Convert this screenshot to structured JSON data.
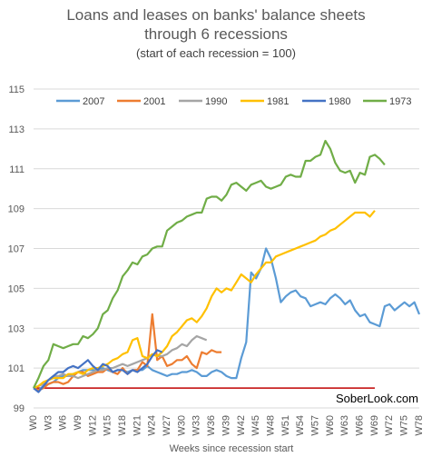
{
  "chart_data": {
    "type": "line",
    "title_line1": "Loans and leases on banks' balance sheets",
    "title_line2": "through 6 recessions",
    "subtitle": "(start of each recession = 100)",
    "xlabel": "Weeks since recession start",
    "ylabel": "",
    "watermark": "SoberLook.com",
    "ylim": [
      99,
      115
    ],
    "yticks": [
      99,
      101,
      103,
      105,
      107,
      109,
      111,
      113,
      115
    ],
    "xlim": [
      0,
      78
    ],
    "xticks": [
      "W0",
      "W3",
      "W6",
      "W9",
      "W12",
      "W15",
      "W18",
      "W21",
      "W24",
      "W27",
      "W30",
      "W33",
      "W36",
      "W39",
      "W42",
      "W45",
      "W48",
      "W51",
      "W54",
      "W57",
      "W60",
      "W63",
      "W66",
      "W69",
      "W72",
      "W75",
      "W78"
    ],
    "grid": "horizontal",
    "legend": "top",
    "baseline": {
      "value": 100,
      "color": "#c00000",
      "from": 0,
      "to": 69
    },
    "series": [
      {
        "name": "2007",
        "color": "#5b9bd5",
        "values": [
          100,
          99.9,
          100.1,
          100.2,
          100.3,
          100.5,
          100.6,
          100.6,
          100.7,
          100.8,
          100.9,
          100.9,
          100.9,
          100.9,
          101.0,
          100.9,
          100.8,
          100.9,
          100.9,
          100.8,
          100.9,
          100.9,
          100.9,
          101.1,
          100.9,
          100.8,
          100.7,
          100.6,
          100.7,
          100.7,
          100.8,
          100.8,
          100.9,
          100.8,
          100.6,
          100.6,
          100.8,
          100.9,
          100.8,
          100.6,
          100.5,
          100.5,
          101.5,
          102.3,
          105.8,
          105.5,
          106.0,
          107.0,
          106.5,
          105.5,
          104.3,
          104.6,
          104.8,
          104.9,
          104.6,
          104.5,
          104.1,
          104.2,
          104.3,
          104.2,
          104.5,
          104.7,
          104.5,
          104.2,
          104.4,
          103.9,
          103.6,
          103.7,
          103.3,
          103.2,
          103.1,
          104.1,
          104.2,
          103.9,
          104.1,
          104.3,
          104.1,
          104.3,
          103.7
        ]
      },
      {
        "name": "2001",
        "color": "#ed7d31",
        "values": [
          100,
          99.9,
          100.0,
          100.2,
          100.3,
          100.3,
          100.2,
          100.3,
          100.6,
          100.8,
          100.8,
          100.6,
          100.7,
          100.8,
          100.8,
          101.0,
          100.8,
          100.7,
          101.0,
          100.7,
          100.9,
          100.9,
          101.3,
          101.1,
          103.7,
          101.4,
          101.6,
          101.1,
          101.2,
          101.4,
          101.4,
          101.6,
          101.2,
          101.0,
          101.8,
          101.7,
          101.9,
          101.8,
          101.8
        ]
      },
      {
        "name": "1990",
        "color": "#a5a5a5",
        "values": [
          100,
          100.1,
          100.2,
          100.4,
          100.6,
          100.6,
          100.7,
          100.6,
          100.6,
          100.5,
          100.6,
          100.7,
          100.8,
          100.9,
          100.9,
          101.0,
          101.0,
          101.1,
          101.2,
          101.1,
          101.2,
          101.3,
          101.4,
          101.5,
          101.7,
          101.6,
          101.6,
          101.7,
          101.9,
          102.0,
          102.2,
          102.1,
          102.4,
          102.6,
          102.5,
          102.4
        ]
      },
      {
        "name": "1981",
        "color": "#ffc000",
        "values": [
          100,
          100.1,
          100.3,
          100.4,
          100.5,
          100.5,
          100.5,
          100.7,
          100.7,
          100.8,
          100.7,
          100.9,
          101.0,
          101.0,
          101.1,
          101.2,
          101.4,
          101.5,
          101.7,
          101.8,
          102.4,
          102.5,
          101.6,
          101.5,
          101.7,
          101.6,
          101.8,
          102.1,
          102.6,
          102.8,
          103.1,
          103.4,
          103.5,
          103.3,
          103.6,
          104.0,
          104.6,
          105.0,
          104.8,
          105.0,
          104.9,
          105.3,
          105.7,
          105.5,
          105.3,
          105.7,
          106.0,
          106.3,
          106.3,
          106.6,
          106.7,
          106.8,
          106.9,
          107.0,
          107.1,
          107.2,
          107.3,
          107.4,
          107.6,
          107.7,
          107.9,
          108.0,
          108.2,
          108.4,
          108.6,
          108.8,
          108.8,
          108.8,
          108.6,
          108.9
        ]
      },
      {
        "name": "1980",
        "color": "#4472c4",
        "values": [
          100,
          99.8,
          100.1,
          100.4,
          100.6,
          100.8,
          100.8,
          101.0,
          101.1,
          101.0,
          101.2,
          101.4,
          101.1,
          100.9,
          101.2,
          101.1,
          100.8,
          100.9,
          100.9,
          100.7,
          100.9,
          100.8,
          101.0,
          101.2,
          101.6,
          101.9,
          101.8
        ]
      },
      {
        "name": "1973",
        "color": "#70ad47",
        "values": [
          100,
          100.5,
          101.1,
          101.4,
          102.2,
          102.1,
          102.0,
          102.1,
          102.2,
          102.2,
          102.6,
          102.5,
          102.7,
          103.0,
          103.7,
          103.9,
          104.5,
          104.9,
          105.6,
          105.9,
          106.3,
          106.2,
          106.6,
          106.7,
          107.0,
          107.1,
          107.1,
          107.9,
          108.1,
          108.3,
          108.4,
          108.6,
          108.7,
          108.8,
          108.8,
          109.5,
          109.6,
          109.6,
          109.4,
          109.7,
          110.2,
          110.3,
          110.1,
          109.9,
          110.2,
          110.3,
          110.4,
          110.1,
          110.0,
          110.1,
          110.2,
          110.6,
          110.7,
          110.6,
          110.6,
          111.4,
          111.4,
          111.6,
          111.7,
          112.4,
          112.0,
          111.3,
          110.9,
          110.8,
          110.9,
          110.3,
          110.8,
          110.7,
          111.6,
          111.7,
          111.5,
          111.2
        ]
      }
    ]
  }
}
